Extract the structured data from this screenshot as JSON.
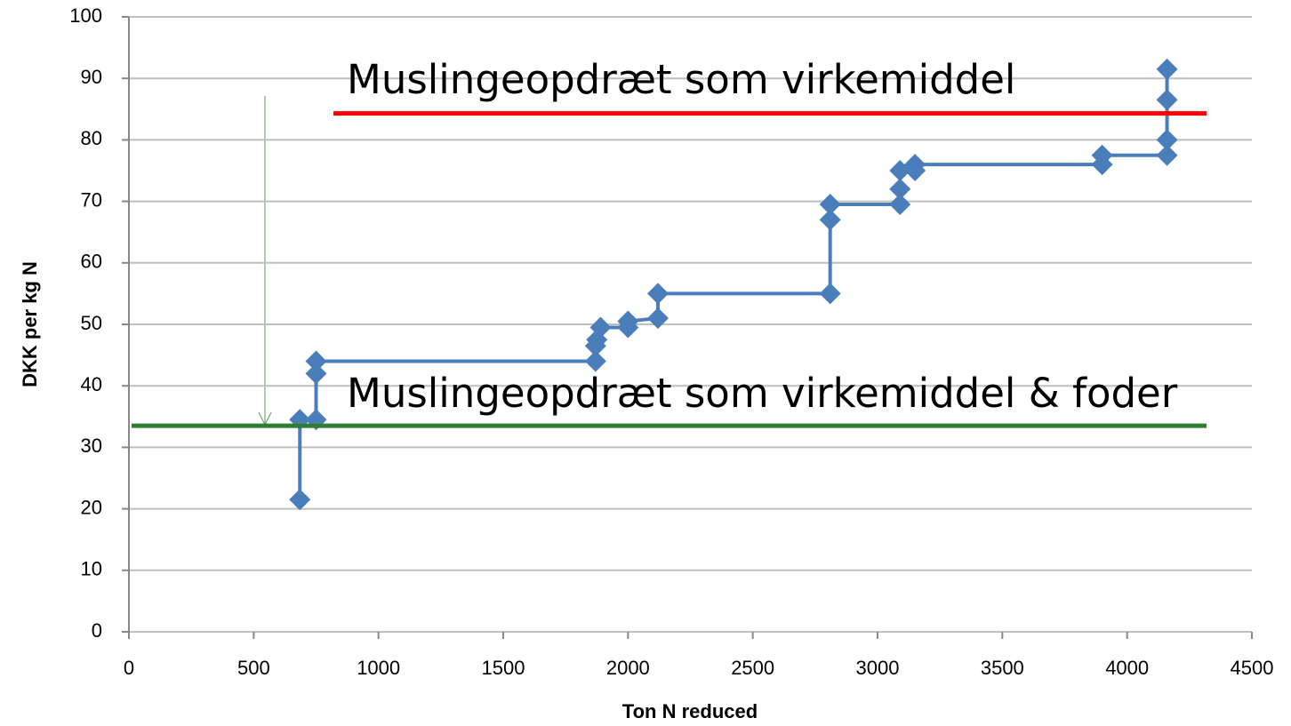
{
  "chart_data": {
    "type": "line",
    "x_label": "Ton N reduced",
    "y_label": "DKK per kg N",
    "x": [
      685,
      685,
      750,
      750,
      750,
      1870,
      1870,
      1875,
      1890,
      2000,
      2000,
      2120,
      2120,
      2810,
      2810,
      2810,
      3090,
      3090,
      3090,
      3150,
      3150,
      3900,
      3900,
      4160,
      4160,
      4160,
      4160
    ],
    "values": [
      21.5,
      34.5,
      34.5,
      42,
      44,
      44,
      46.5,
      47.5,
      49.5,
      49.5,
      50.5,
      51,
      55,
      55,
      67,
      69.5,
      69.5,
      72,
      75,
      75,
      76,
      76,
      77.5,
      77.5,
      80,
      86.5,
      91.5
    ],
    "color": "#4a7ebb",
    "xlim": [
      0,
      4500
    ],
    "xticks": [
      0,
      500,
      1000,
      1500,
      2000,
      2500,
      3000,
      3500,
      4000,
      4500
    ],
    "ylim": [
      0,
      100
    ],
    "yticks": [
      0,
      10,
      20,
      30,
      40,
      50,
      60,
      70,
      80,
      90,
      100
    ],
    "grid": true,
    "reference_lines": [
      {
        "label": "Muslingeopdræt som virkemiddel",
        "y": 84.3,
        "color": "#ff0000"
      },
      {
        "label": "Muslingeopdræt som virkemiddel & foder",
        "y": 33.5,
        "color": "#2e7d32"
      }
    ]
  }
}
